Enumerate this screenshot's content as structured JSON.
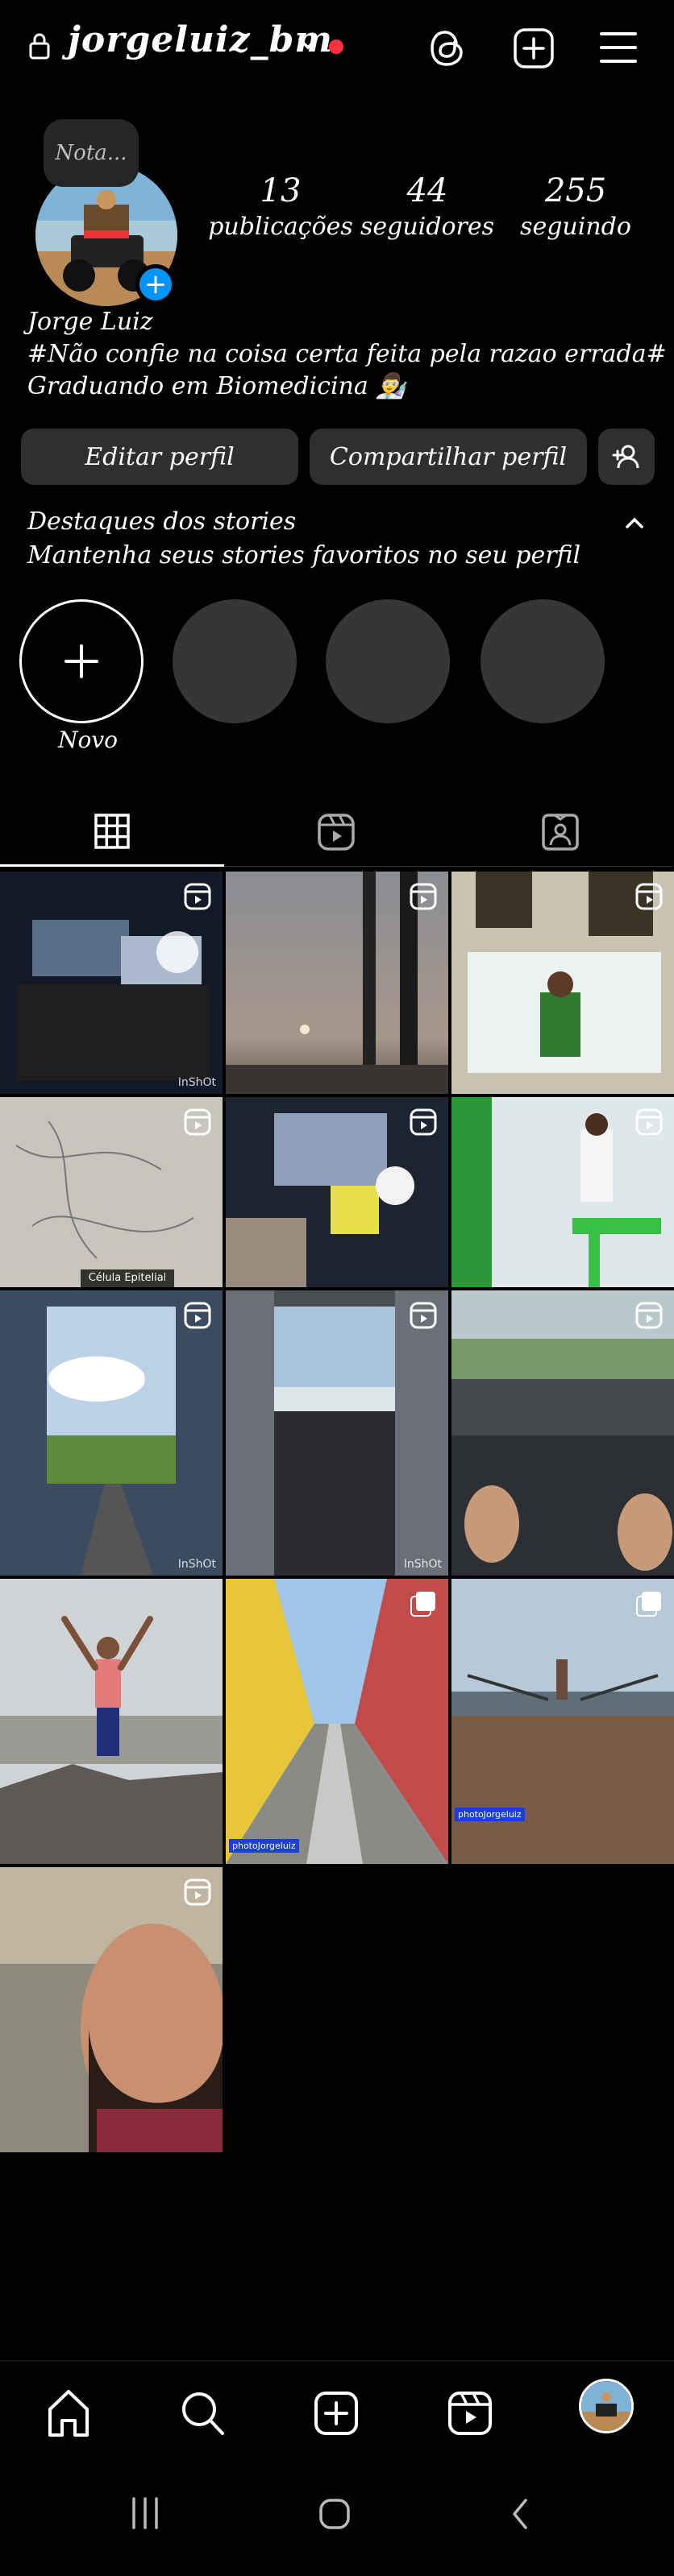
{
  "header": {
    "username": "jorgeluiz_bm",
    "icons": [
      "lock-icon",
      "chevron-down-icon",
      "threads-icon",
      "create-icon",
      "menu-icon"
    ],
    "notification_color": "#ff3040"
  },
  "profile": {
    "note": "Nota...",
    "stats": [
      {
        "number": "13",
        "label": "publicações"
      },
      {
        "number": "44",
        "label": "seguidores"
      },
      {
        "number": "255",
        "label": "seguindo"
      }
    ],
    "name": "Jorge Luiz",
    "bio_line1": "#Não confie na coisa certa feita pela razao errada#",
    "bio_line2": "Graduando em Biomedicina 👨‍🔬",
    "accent": "#0095f6"
  },
  "actions": {
    "edit": "Editar perfil",
    "share": "Compartilhar perfil"
  },
  "highlights": {
    "title": "Destaques dos stories",
    "subtitle": "Mantenha seus stories favoritos no seu perfil",
    "new_label": "Novo"
  },
  "tabs": [
    "grid-icon",
    "reels-icon",
    "tagged-icon"
  ],
  "grid": {
    "watermarks": [
      "InShOt",
      "InShOt",
      "InShOt"
    ],
    "caption_cell": "Célula Epitelial",
    "tags": [
      "photoJorgeluiz",
      "photoJorgeluiz"
    ]
  },
  "bottom_nav": [
    "home-icon",
    "search-icon",
    "create-icon",
    "reels-icon",
    "profile-avatar"
  ]
}
